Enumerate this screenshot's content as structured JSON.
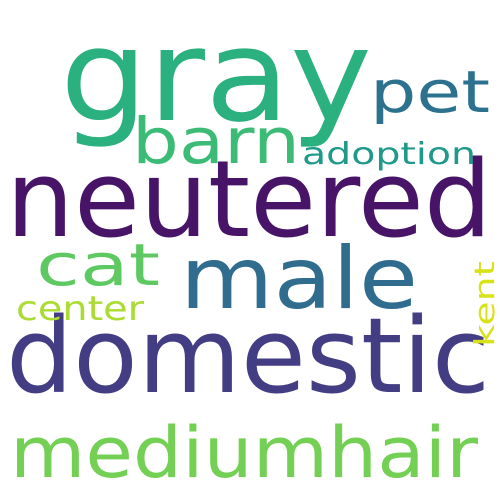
{
  "words": [
    {
      "text": "gray",
      "color": "#2bb07f"
    },
    {
      "text": "neutered",
      "color": "#471468"
    },
    {
      "text": "domestic",
      "color": "#433d84"
    },
    {
      "text": "male",
      "color": "#2f6c8e"
    },
    {
      "text": "mediumhair",
      "color": "#74d055"
    },
    {
      "text": "barn",
      "color": "#3bbb75"
    },
    {
      "text": "pet",
      "color": "#2c718e"
    },
    {
      "text": "cat",
      "color": "#5ec962"
    },
    {
      "text": "adoption",
      "color": "#1f9a8a"
    },
    {
      "text": "center",
      "color": "#aadc32"
    },
    {
      "text": "kent",
      "color": "#d8e219"
    }
  ]
}
